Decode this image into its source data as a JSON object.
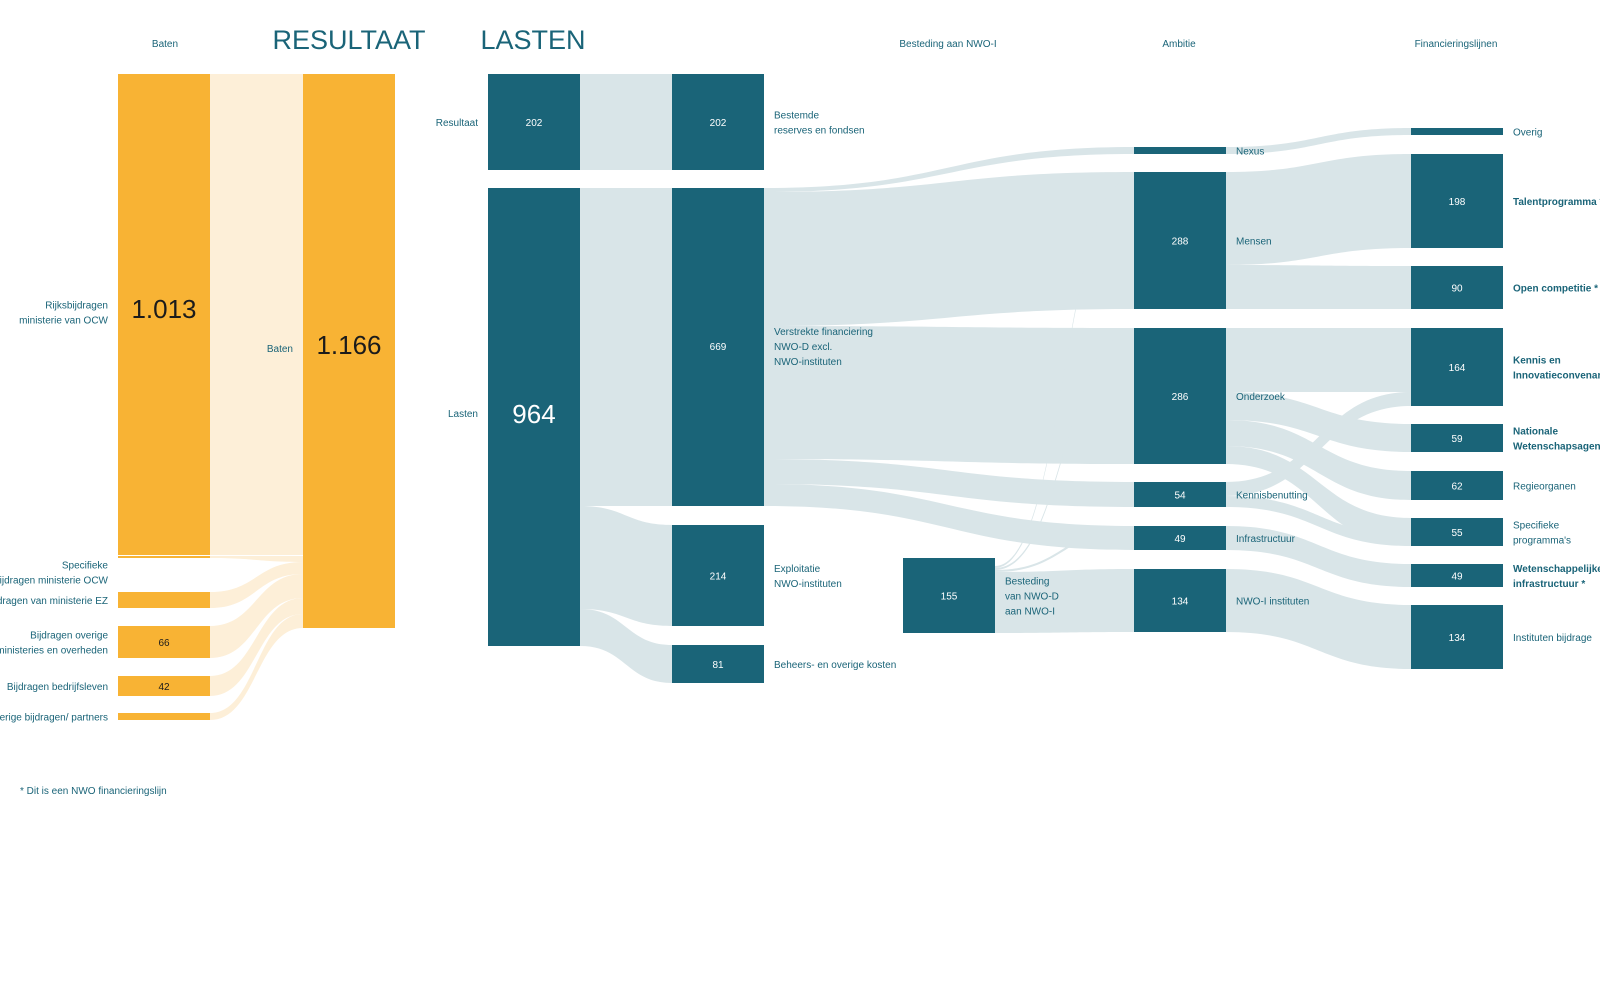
{
  "headers": {
    "baten": "Baten",
    "resultaat": "RESULTAAT",
    "lasten": "LASTEN",
    "besteding": "Besteding aan NWO-I",
    "ambitie": "Ambitie",
    "financieringslijnen": "Financieringslijnen"
  },
  "baten_nodes": [
    {
      "label": "Rijksbijdragen ministerie van OCW",
      "lines": [
        "Rijksbijdragen",
        "ministerie van OCW"
      ],
      "value": "1.013",
      "share": 1013
    },
    {
      "label": "Specifieke bijdragen ministerie OCW",
      "lines": [
        "Specifieke",
        "bijdragen ministerie OCW"
      ],
      "value": "",
      "share": 0
    },
    {
      "label": "Bijdragen van ministerie EZ",
      "lines": [
        "Bijdragen van ministerie EZ"
      ],
      "value": "",
      "share": 0
    },
    {
      "label": "Bijdragen overige ministeries en overheden",
      "lines": [
        "Bijdragen overige",
        "ministeries en overheden"
      ],
      "value": "66",
      "share": 66
    },
    {
      "label": "Bijdragen bedrijfsleven",
      "lines": [
        "Bijdragen bedrijfsleven"
      ],
      "value": "42",
      "share": 42
    },
    {
      "label": "Overige bijdragen/ partners",
      "lines": [
        "Overige bijdragen/ partners"
      ],
      "value": "",
      "share": 0
    }
  ],
  "resultaat_node": {
    "label": "Baten",
    "value": "1.166"
  },
  "lasten_nodes": [
    {
      "label": "Resultaat",
      "value": "202"
    },
    {
      "label": "Lasten",
      "value": "964"
    }
  ],
  "categorie_nodes": [
    {
      "label": "Bestemde reserves en fondsen",
      "lines": [
        "Bestemde",
        "reserves en fondsen"
      ],
      "value": "202"
    },
    {
      "label": "Verstrekte financiering NWO-D excl. NWO-instituten",
      "lines": [
        "Verstrekte financiering",
        "NWO-D excl.",
        "NWO-instituten"
      ],
      "value": "669"
    },
    {
      "label": "Exploitatie NWO-instituten",
      "lines": [
        "Exploitatie",
        "NWO-instituten"
      ],
      "value": "214"
    },
    {
      "label": "Beheers- en overige kosten",
      "lines": [
        "Beheers- en overige kosten"
      ],
      "value": "81"
    }
  ],
  "besteding_node": {
    "label": "Besteding van NWO-D aan NWO-I",
    "lines": [
      "Besteding",
      "van NWO-D",
      "aan NWO-I"
    ],
    "value": "155"
  },
  "ambitie_nodes": [
    {
      "label": "Nexus",
      "value": ""
    },
    {
      "label": "Mensen",
      "value": "288"
    },
    {
      "label": "Onderzoek",
      "value": "286"
    },
    {
      "label": "Kennisbenutting",
      "value": "54"
    },
    {
      "label": "Infrastructuur",
      "value": "49"
    },
    {
      "label": "NWO-I instituten",
      "value": "134"
    }
  ],
  "financiering_nodes": [
    {
      "label": "Overig",
      "lines": [
        "Overig"
      ],
      "value": "",
      "bold": false
    },
    {
      "label": "Talentprogramma *",
      "lines": [
        "Talentprogramma *"
      ],
      "value": "198",
      "bold": true
    },
    {
      "label": "Open competitie *",
      "lines": [
        "Open competitie *"
      ],
      "value": "90",
      "bold": true
    },
    {
      "label": "Kennis en Innovatieconvenant *",
      "lines": [
        "Kennis en",
        "Innovatieconvenant *"
      ],
      "value": "164",
      "bold": true
    },
    {
      "label": "Nationale Wetenschapsagenda *",
      "lines": [
        "Nationale",
        "Wetenschapsagenda *"
      ],
      "value": "59",
      "bold": true
    },
    {
      "label": "Regieorganen",
      "lines": [
        "Regieorganen"
      ],
      "value": "62",
      "bold": false
    },
    {
      "label": "Specifieke programma's",
      "lines": [
        "Specifieke",
        "programma's"
      ],
      "value": "55",
      "bold": false
    },
    {
      "label": "Wetenschappelijke infrastructuur *",
      "lines": [
        "Wetenschappelijke",
        "infrastructuur *"
      ],
      "value": "49",
      "bold": true
    },
    {
      "label": "Instituten bijdrage",
      "lines": [
        "Instituten bijdrage"
      ],
      "value": "134",
      "bold": false
    }
  ],
  "footnote": "* Dit is een NWO financieringslijn",
  "colors": {
    "orange": "#f8b334",
    "orange_flow": "#fdefd8",
    "teal": "#1a6478",
    "teal_flow": "#d9e5e8",
    "label": "#1a6478"
  }
}
